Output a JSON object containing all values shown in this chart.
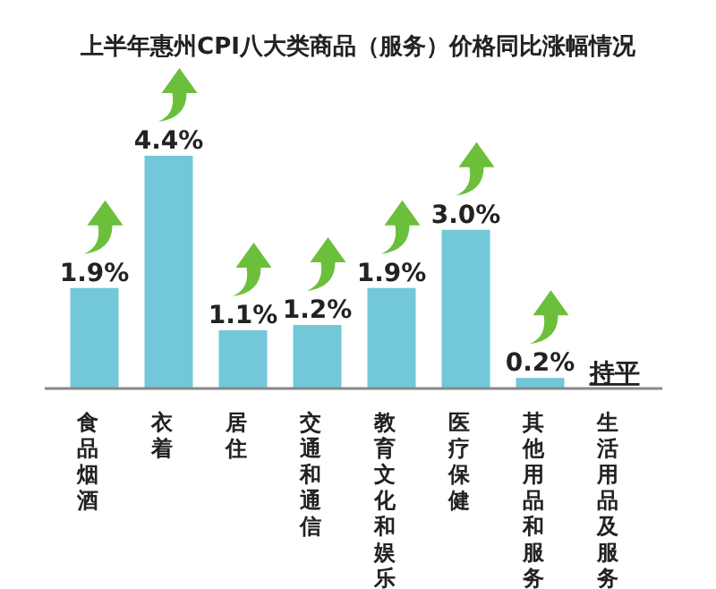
{
  "chart_data": {
    "type": "bar",
    "title": "上半年惠州CPI八大类商品（服务）价格同比涨幅情况",
    "categories": [
      "食品烟酒",
      "衣着",
      "居住",
      "交通和通信",
      "教育文化和娱乐",
      "医疗保健",
      "其他用品和服务",
      "生活用品及服务"
    ],
    "values": [
      1.9,
      4.4,
      1.1,
      1.2,
      1.9,
      3.0,
      0.2,
      0
    ],
    "value_labels": [
      "1.9%",
      "4.4%",
      "1.1%",
      "1.2%",
      "1.9%",
      "3.0%",
      "0.2%",
      "持平"
    ],
    "color": "#72c8d8"
  }
}
